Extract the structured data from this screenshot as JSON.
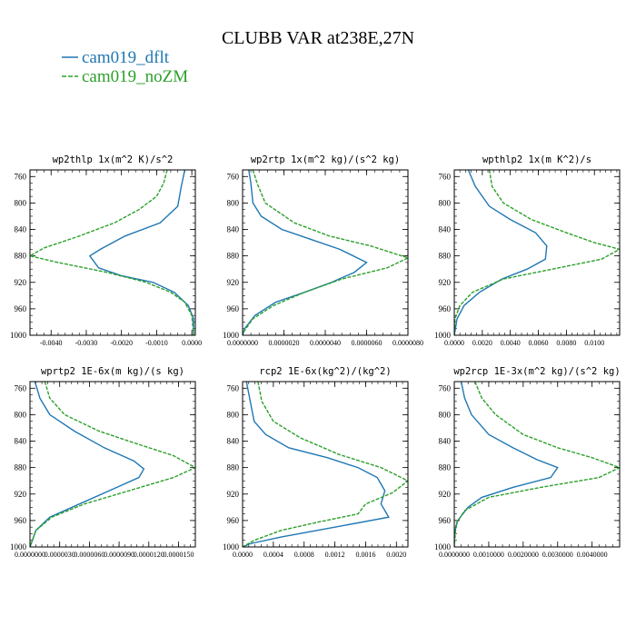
{
  "title": "CLUBB VAR at238E,27N",
  "colors": {
    "dflt": "#1f77b4",
    "noZM": "#2ca02c"
  },
  "legend": [
    {
      "key": "dflt",
      "label": "cam019_dflt"
    },
    {
      "key": "noZM",
      "label": "cam019_noZM"
    }
  ],
  "chart_data": [
    {
      "type": "line",
      "title": "wp2thlp  1x(m^2 K)/s^2",
      "xlim": [
        -0.0046,
        0.0001
      ],
      "ylim": [
        1000,
        750
      ],
      "y_ticks": [
        760,
        800,
        840,
        880,
        920,
        960,
        1000
      ],
      "x_ticks": [
        -0.004,
        -0.003,
        -0.002,
        -0.001,
        0.0
      ],
      "x_tick_labels": [
        "-0.0040",
        "-0.0030",
        "-0.0020",
        "-0.0010",
        "0.0000"
      ],
      "series": [
        {
          "key": "dflt",
          "name": "cam019_dflt",
          "points": [
            [
              -0.0002,
              750
            ],
            [
              -0.0003,
              775
            ],
            [
              -0.0004,
              805
            ],
            [
              -0.0009,
              830
            ],
            [
              -0.0019,
              850
            ],
            [
              -0.0026,
              870
            ],
            [
              -0.0029,
              880
            ],
            [
              -0.00265,
              898
            ],
            [
              -0.002,
              910
            ],
            [
              -0.0011,
              920
            ],
            [
              -0.0005,
              935
            ],
            [
              -0.0001,
              955
            ],
            [
              5e-05,
              975
            ],
            [
              5e-05,
              1000
            ]
          ]
        },
        {
          "key": "noZM",
          "name": "cam019_noZM",
          "points": [
            [
              -0.0007,
              750
            ],
            [
              -0.0008,
              770
            ],
            [
              -0.001,
              790
            ],
            [
              -0.0015,
              810
            ],
            [
              -0.0022,
              830
            ],
            [
              -0.0032,
              850
            ],
            [
              -0.0042,
              868
            ],
            [
              -0.0046,
              880
            ],
            [
              -0.0038,
              890
            ],
            [
              -0.0024,
              905
            ],
            [
              -0.0013,
              920
            ],
            [
              -0.0006,
              935
            ],
            [
              -0.0002,
              950
            ],
            [
              0.0,
              970
            ],
            [
              5e-05,
              1000
            ]
          ]
        }
      ]
    },
    {
      "type": "line",
      "title": "wp2rtp  1x(m^2 kg)/(s^2 kg)",
      "xlim": [
        0.0,
        8e-06
      ],
      "ylim": [
        1000,
        750
      ],
      "y_ticks": [
        760,
        800,
        840,
        880,
        920,
        960,
        1000
      ],
      "x_ticks": [
        0.0,
        2e-06,
        4e-06,
        6e-06,
        8e-06
      ],
      "x_tick_labels": [
        "0.0000000",
        "0.0000020",
        "0.0000040",
        "0.0000060",
        "0.0000080"
      ],
      "series": [
        {
          "key": "dflt",
          "name": "cam019_dflt",
          "points": [
            [
              3e-07,
              750
            ],
            [
              4e-07,
              770
            ],
            [
              5e-07,
              800
            ],
            [
              9e-07,
              820
            ],
            [
              1.9e-06,
              840
            ],
            [
              3.3e-06,
              855
            ],
            [
              4.7e-06,
              870
            ],
            [
              6e-06,
              890
            ],
            [
              5.4e-06,
              905
            ],
            [
              4.3e-06,
              920
            ],
            [
              3e-06,
              935
            ],
            [
              1.6e-06,
              950
            ],
            [
              6e-07,
              970
            ],
            [
              1e-07,
              990
            ],
            [
              0.0,
              1000
            ]
          ]
        },
        {
          "key": "noZM",
          "name": "cam019_noZM",
          "points": [
            [
              5e-07,
              750
            ],
            [
              7e-07,
              770
            ],
            [
              1.1e-06,
              800
            ],
            [
              2.5e-06,
              830
            ],
            [
              4.2e-06,
              850
            ],
            [
              6.2e-06,
              865
            ],
            [
              8e-06,
              883
            ],
            [
              7e-06,
              898
            ],
            [
              4.8e-06,
              915
            ],
            [
              3e-06,
              935
            ],
            [
              1.5e-06,
              955
            ],
            [
              5e-07,
              975
            ],
            [
              5e-08,
              995
            ],
            [
              0.0,
              1000
            ]
          ]
        }
      ]
    },
    {
      "type": "line",
      "title": "wpthlp2  1x(m K^2)/s",
      "xlim": [
        0.0,
        0.0118
      ],
      "ylim": [
        1000,
        750
      ],
      "y_ticks": [
        760,
        800,
        840,
        880,
        920,
        960,
        1000
      ],
      "x_ticks": [
        0.0,
        0.002,
        0.004,
        0.006,
        0.008,
        0.01
      ],
      "x_tick_labels": [
        "0.0000",
        "0.0020",
        "0.0040",
        "0.0060",
        "0.0080",
        "0.0100"
      ],
      "series": [
        {
          "key": "dflt",
          "name": "cam019_dflt",
          "points": [
            [
              0.001,
              750
            ],
            [
              0.0015,
              775
            ],
            [
              0.0025,
              805
            ],
            [
              0.004,
              825
            ],
            [
              0.0058,
              845
            ],
            [
              0.0066,
              865
            ],
            [
              0.0065,
              885
            ],
            [
              0.0052,
              900
            ],
            [
              0.0034,
              915
            ],
            [
              0.0018,
              935
            ],
            [
              0.0007,
              955
            ],
            [
              0.0002,
              975
            ],
            [
              0.0,
              1000
            ]
          ]
        },
        {
          "key": "noZM",
          "name": "cam019_noZM",
          "points": [
            [
              0.0025,
              750
            ],
            [
              0.0027,
              775
            ],
            [
              0.0035,
              800
            ],
            [
              0.0055,
              825
            ],
            [
              0.008,
              845
            ],
            [
              0.01,
              860
            ],
            [
              0.0118,
              870
            ],
            [
              0.0105,
              885
            ],
            [
              0.007,
              900
            ],
            [
              0.0035,
              915
            ],
            [
              0.0013,
              935
            ],
            [
              0.0004,
              955
            ],
            [
              5e-05,
              975
            ],
            [
              0.0,
              1000
            ]
          ]
        }
      ]
    },
    {
      "type": "line",
      "title": "wprtp2  1E-6x(m kg)/(s kg)",
      "xlim": [
        0.0,
        1.67e-05
      ],
      "ylim": [
        1000,
        750
      ],
      "y_ticks": [
        760,
        800,
        840,
        880,
        920,
        960,
        1000
      ],
      "x_ticks": [
        0.0,
        3e-06,
        6e-06,
        9e-06,
        1.2e-05,
        1.5e-05
      ],
      "x_tick_labels": [
        "0.0000000",
        "0.0000030",
        "0.0000060",
        "0.0000090",
        "0.0000120",
        "0.0000150"
      ],
      "series": [
        {
          "key": "dflt",
          "name": "cam019_dflt",
          "points": [
            [
              5e-07,
              750
            ],
            [
              1e-06,
              775
            ],
            [
              2e-06,
              800
            ],
            [
              4.5e-06,
              825
            ],
            [
              7.5e-06,
              850
            ],
            [
              1.05e-05,
              870
            ],
            [
              1.15e-05,
              882
            ],
            [
              1.1e-05,
              895
            ],
            [
              8e-06,
              915
            ],
            [
              5e-06,
              935
            ],
            [
              2e-06,
              955
            ],
            [
              6e-07,
              975
            ],
            [
              0.0,
              1000
            ]
          ]
        },
        {
          "key": "noZM",
          "name": "cam019_noZM",
          "points": [
            [
              1.5e-06,
              750
            ],
            [
              2e-06,
              775
            ],
            [
              3.5e-06,
              800
            ],
            [
              7e-06,
              825
            ],
            [
              1.1e-05,
              845
            ],
            [
              1.45e-05,
              862
            ],
            [
              1.67e-05,
              880
            ],
            [
              1.45e-05,
              895
            ],
            [
              1e-05,
              915
            ],
            [
              5.5e-06,
              935
            ],
            [
              2.2e-06,
              955
            ],
            [
              6e-07,
              975
            ],
            [
              0.0,
              1000
            ]
          ]
        }
      ]
    },
    {
      "type": "line",
      "title": "rcp2  1E-6x(kg^2)/(kg^2)",
      "xlim": [
        0.0,
        0.00215
      ],
      "ylim": [
        1000,
        750
      ],
      "y_ticks": [
        760,
        800,
        840,
        880,
        920,
        960,
        1000
      ],
      "x_ticks": [
        0.0,
        0.0004,
        0.0008,
        0.0012,
        0.0016,
        0.002
      ],
      "x_tick_labels": [
        "0.0000",
        "0.0004",
        "0.0008",
        "0.0012",
        "0.0016",
        "0.0020"
      ],
      "series": [
        {
          "key": "dflt",
          "name": "cam019_dflt",
          "points": [
            [
              5e-05,
              750
            ],
            [
              0.0001,
              780
            ],
            [
              0.00015,
              810
            ],
            [
              0.0003,
              830
            ],
            [
              0.0006,
              850
            ],
            [
              0.0011,
              865
            ],
            [
              0.0015,
              880
            ],
            [
              0.00175,
              895
            ],
            [
              0.00185,
              915
            ],
            [
              0.0018,
              935
            ],
            [
              0.0019,
              955
            ],
            [
              0.0012,
              970
            ],
            [
              0.0005,
              985
            ],
            [
              0.0001,
              995
            ],
            [
              0.0,
              1000
            ]
          ]
        },
        {
          "key": "noZM",
          "name": "cam019_noZM",
          "points": [
            [
              0.0002,
              750
            ],
            [
              0.00025,
              780
            ],
            [
              0.0004,
              810
            ],
            [
              0.00075,
              835
            ],
            [
              0.00125,
              860
            ],
            [
              0.0018,
              880
            ],
            [
              0.00215,
              900
            ],
            [
              0.00195,
              918
            ],
            [
              0.0016,
              935
            ],
            [
              0.0015,
              950
            ],
            [
              0.001,
              962
            ],
            [
              0.0005,
              975
            ],
            [
              0.00015,
              990
            ],
            [
              0.0,
              1000
            ]
          ]
        }
      ]
    },
    {
      "type": "line",
      "title": "wp2rcp  1E-3x(m^2 kg)/(s^2 kg)",
      "xlim": [
        0.0,
        0.0048
      ],
      "ylim": [
        1000,
        750
      ],
      "y_ticks": [
        760,
        800,
        840,
        880,
        920,
        960,
        1000
      ],
      "x_ticks": [
        0.0,
        0.001,
        0.002,
        0.003,
        0.004
      ],
      "x_tick_labels": [
        "0.0000000",
        "0.0010000",
        "0.0020000",
        "0.0030000",
        "0.0040000"
      ],
      "series": [
        {
          "key": "dflt",
          "name": "cam019_dflt",
          "points": [
            [
              0.0002,
              750
            ],
            [
              0.0003,
              775
            ],
            [
              0.0005,
              800
            ],
            [
              0.001,
              830
            ],
            [
              0.0017,
              850
            ],
            [
              0.0024,
              868
            ],
            [
              0.003,
              880
            ],
            [
              0.0028,
              895
            ],
            [
              0.0017,
              910
            ],
            [
              0.0008,
              925
            ],
            [
              0.0004,
              940
            ],
            [
              0.0001,
              960
            ],
            [
              0.0,
              980
            ],
            [
              0.0,
              1000
            ]
          ]
        },
        {
          "key": "noZM",
          "name": "cam019_noZM",
          "points": [
            [
              0.0006,
              750
            ],
            [
              0.0008,
              775
            ],
            [
              0.0012,
              800
            ],
            [
              0.002,
              830
            ],
            [
              0.003,
              850
            ],
            [
              0.004,
              865
            ],
            [
              0.0048,
              880
            ],
            [
              0.0042,
              895
            ],
            [
              0.0025,
              910
            ],
            [
              0.001,
              925
            ],
            [
              0.0003,
              945
            ],
            [
              5e-05,
              965
            ],
            [
              0.0,
              1000
            ]
          ]
        }
      ]
    }
  ]
}
